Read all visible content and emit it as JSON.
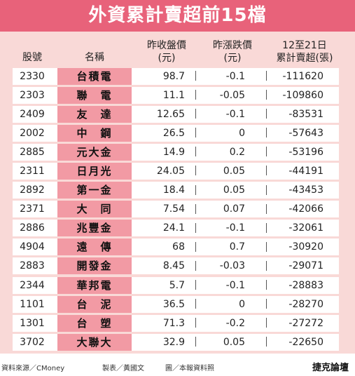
{
  "title": "外資累計賣超前15檔",
  "headers": {
    "code": "股號",
    "name": "名稱",
    "price_l1": "昨收盤價",
    "price_l2": "(元)",
    "change_l1": "昨漲跌價",
    "change_l2": "(元)",
    "net_l1": "12至21日",
    "net_l2": "累計賣超(張)"
  },
  "rows": [
    {
      "code": "2330",
      "name": "台積電",
      "price": "98.7",
      "change": "-0.1",
      "net": "-111620"
    },
    {
      "code": "2303",
      "name": "聯　電",
      "price": "11.1",
      "change": "-0.05",
      "net": "-109860"
    },
    {
      "code": "2409",
      "name": "友　達",
      "price": "12.65",
      "change": "-0.1",
      "net": "-83531"
    },
    {
      "code": "2002",
      "name": "中　鋼",
      "price": "26.5",
      "change": "0",
      "net": "-57643"
    },
    {
      "code": "2885",
      "name": "元大金",
      "price": "14.9",
      "change": "0.2",
      "net": "-53196"
    },
    {
      "code": "2311",
      "name": "日月光",
      "price": "24.05",
      "change": "0.05",
      "net": "-44191"
    },
    {
      "code": "2892",
      "name": "第一金",
      "price": "18.4",
      "change": "0.05",
      "net": "-43453"
    },
    {
      "code": "2371",
      "name": "大　同",
      "price": "7.54",
      "change": "0.07",
      "net": "-42066"
    },
    {
      "code": "2886",
      "name": "兆豐金",
      "price": "24.1",
      "change": "-0.1",
      "net": "-32061"
    },
    {
      "code": "4904",
      "name": "遠　傳",
      "price": "68",
      "change": "0.7",
      "net": "-30920"
    },
    {
      "code": "2883",
      "name": "開發金",
      "price": "8.45",
      "change": "-0.03",
      "net": "-29071"
    },
    {
      "code": "2344",
      "name": "華邦電",
      "price": "5.7",
      "change": "-0.1",
      "net": "-28883"
    },
    {
      "code": "1101",
      "name": "台　泥",
      "price": "36.5",
      "change": "0",
      "net": "-28270"
    },
    {
      "code": "1301",
      "name": "台　塑",
      "price": "71.3",
      "change": "-0.2",
      "net": "-27272"
    },
    {
      "code": "3702",
      "name": "大聯大",
      "price": "32.9",
      "change": "0.05",
      "net": "-22650"
    }
  ],
  "footer": {
    "source": "資料來源／CMoney",
    "editor": "製表／黃國文",
    "graphic": "圖／本報資料照",
    "logo": "捷克論壇"
  },
  "colors": {
    "title_bg": "#e8627a",
    "panel_bg": "#f9d9d7",
    "name_cell_bg": "#f29aa4"
  }
}
